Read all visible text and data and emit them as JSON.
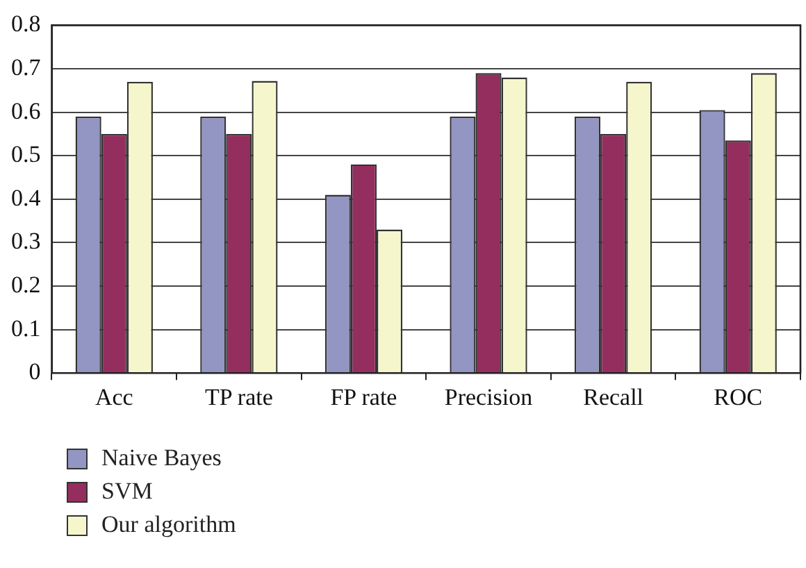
{
  "chart_data": {
    "type": "bar",
    "categories": [
      "Acc",
      "TP rate",
      "FP rate",
      "Precision",
      "Recall",
      "ROC"
    ],
    "series": [
      {
        "name": "Naive Bayes",
        "color": "#9395c3",
        "values": [
          0.59,
          0.59,
          0.41,
          0.59,
          0.59,
          0.605
        ]
      },
      {
        "name": "SVM",
        "color": "#932e5e",
        "values": [
          0.55,
          0.55,
          0.48,
          0.69,
          0.55,
          0.535
        ]
      },
      {
        "name": "Our algorithm",
        "color": "#f6f6cd",
        "values": [
          0.67,
          0.672,
          0.33,
          0.68,
          0.67,
          0.69
        ]
      }
    ],
    "ylim": [
      0,
      0.8
    ],
    "yticks": [
      0,
      0.1,
      0.2,
      0.3,
      0.4,
      0.5,
      0.6,
      0.7,
      0.8
    ],
    "grid": "y",
    "legend": "bottom left"
  }
}
